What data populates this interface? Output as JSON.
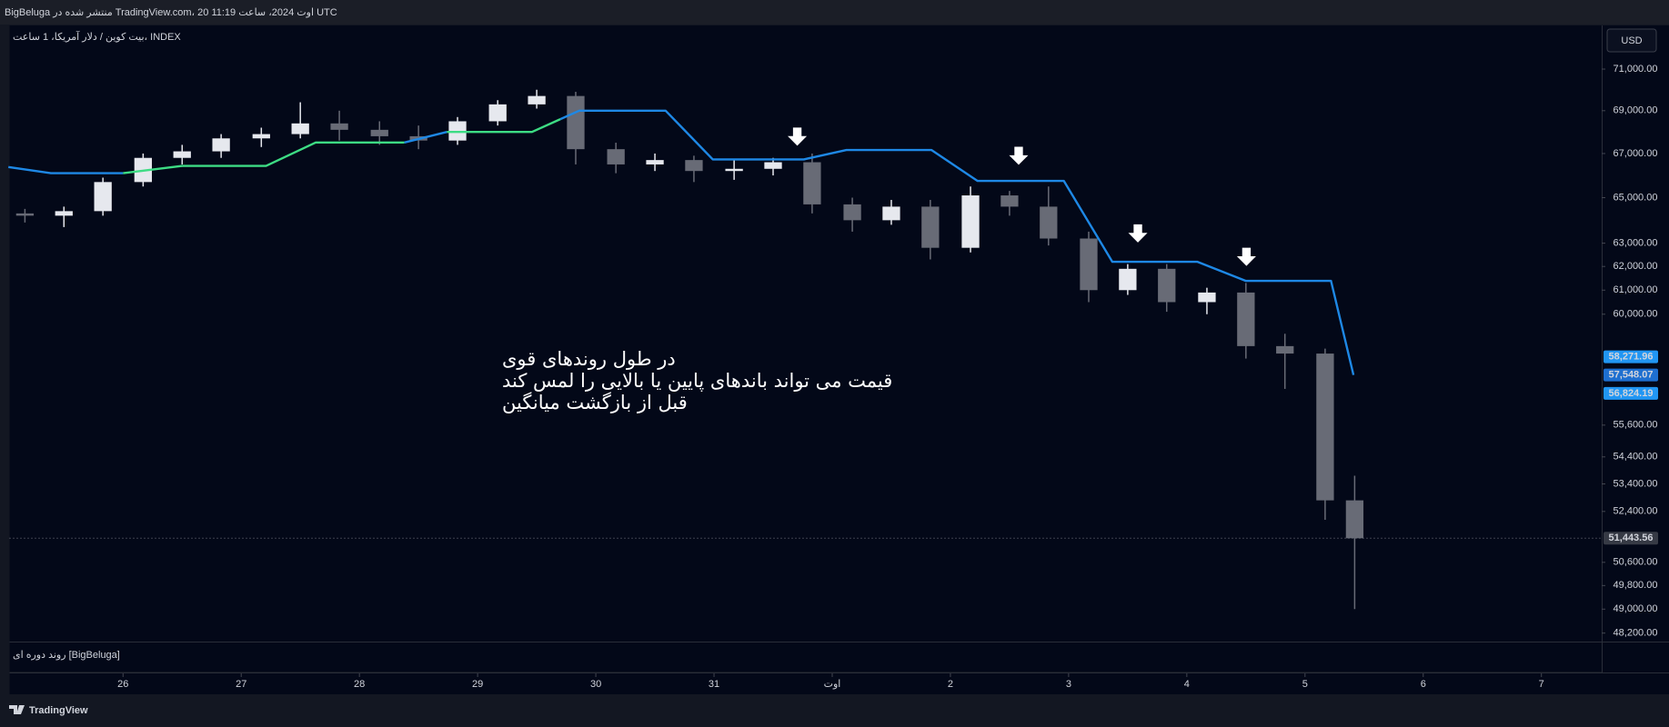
{
  "header": {
    "text": "BigBeluga منتشر شده در TradingView.com، 20 اوت 2024، ساعت 11:19 UTC"
  },
  "chart_data": {
    "type": "candlestick",
    "symbol": "بیت کوین / دلار آمریکا، 1 ساعت، INDEX",
    "currency": "USD",
    "annotation": [
      "در طول روندهای قوی",
      "قیمت می تواند باندهای پایین یا بالایی را لمس کند",
      "قبل از بازگشت میانگین"
    ],
    "indicator": "روند دوره ای [BigBeluga]",
    "x": [
      25.17,
      25.5,
      25.83,
      26.17,
      26.5,
      26.83,
      27.17,
      27.5,
      27.83,
      28.17,
      28.5,
      28.83,
      29.17,
      29.5,
      29.83,
      30.17,
      30.5,
      30.83,
      31.17,
      31.5,
      31.83,
      32.17,
      32.5,
      32.83,
      33.17,
      33.5,
      33.83,
      34.17,
      34.5,
      34.83,
      35.17,
      35.5,
      35.83,
      36.17,
      36.42
    ],
    "open": [
      64300,
      64200,
      64400,
      65700,
      66800,
      67100,
      67700,
      67900,
      68400,
      68100,
      67800,
      67600,
      68500,
      69300,
      69700,
      67200,
      66500,
      66700,
      66200,
      66300,
      66600,
      64700,
      64000,
      64600,
      62800,
      65100,
      64600,
      63200,
      61000,
      61900,
      60500,
      60900,
      58700,
      58400,
      52800
    ],
    "high": [
      64500,
      64600,
      65900,
      67000,
      67400,
      67900,
      68200,
      69400,
      69000,
      68500,
      68300,
      68700,
      69500,
      70000,
      69900,
      67500,
      67000,
      66900,
      66700,
      66800,
      67000,
      65000,
      64900,
      64900,
      65500,
      65300,
      65500,
      63500,
      62100,
      62100,
      61100,
      61300,
      59200,
      58600,
      53700
    ],
    "low": [
      63900,
      63700,
      64200,
      65500,
      66500,
      66800,
      67300,
      67700,
      67600,
      67400,
      67200,
      67400,
      68300,
      69100,
      66500,
      66100,
      66200,
      65700,
      65800,
      66000,
      64300,
      63500,
      63800,
      62300,
      62600,
      64200,
      62900,
      60500,
      60800,
      60100,
      60000,
      58200,
      57000,
      52100,
      49000
    ],
    "close": [
      64200,
      64400,
      65700,
      66800,
      67100,
      67700,
      67900,
      68400,
      68100,
      67800,
      67600,
      68500,
      69300,
      69700,
      67200,
      66500,
      66700,
      66200,
      66300,
      66600,
      64700,
      64000,
      64600,
      62800,
      65100,
      64600,
      63200,
      61000,
      61900,
      60500,
      60900,
      58700,
      58400,
      52800,
      51443.56
    ],
    "close_label": "51,443.56",
    "up_color": "#e6e8ee",
    "down_color": "#686b76",
    "series": [
      {
        "color": "#1e88e5",
        "x": [
          25.03,
          25.39,
          26.0
        ],
        "values": [
          66380,
          66100,
          66100
        ]
      },
      {
        "color": "#3ddc84",
        "x": [
          26.0,
          26.5,
          27.21,
          27.63,
          28.38
        ],
        "values": [
          66100,
          66430,
          66430,
          67510,
          67510
        ]
      },
      {
        "color": "#1e88e5",
        "x": [
          28.38,
          28.74
        ],
        "values": [
          67510,
          68000
        ]
      },
      {
        "color": "#3ddc84",
        "x": [
          28.74,
          29.46,
          29.7
        ],
        "values": [
          68000,
          68000,
          68600
        ]
      },
      {
        "color": "#1e88e5",
        "x": [
          29.7,
          29.86,
          30.59,
          30.99,
          31.76,
          32.12,
          32.84,
          33.23,
          33.96,
          34.37,
          35.09,
          35.5,
          36.22,
          36.41
        ],
        "values": [
          68600,
          69000,
          69000,
          66730,
          66730,
          67160,
          67160,
          65750,
          65750,
          62200,
          62200,
          61390,
          61390,
          57548.07
        ]
      }
    ],
    "price_labels": [
      {
        "value": 58271.96,
        "label": "58,271.96",
        "color": "#2196f3"
      },
      {
        "value": 57548.07,
        "label": "57,548.07",
        "color": "#1e6fd0"
      },
      {
        "value": 56824.19,
        "label": "56,824.19",
        "color": "#2196f3"
      }
    ],
    "log_scale": true,
    "xlim": [
      25.04,
      38.51
    ],
    "ylim": [
      47920,
      73160
    ],
    "xticks": [
      26,
      27,
      28,
      29,
      30,
      31,
      {
        "value": 32,
        "label": "اوت"
      },
      {
        "value": 33,
        "label": "2"
      },
      {
        "value": 34,
        "label": "3"
      },
      {
        "value": 35,
        "label": "4"
      },
      {
        "value": 36,
        "label": "5"
      },
      {
        "value": 37,
        "label": "6"
      },
      {
        "value": 38,
        "label": "7"
      }
    ],
    "yticks": [
      {
        "value": 71000,
        "label": "71,000.00"
      },
      {
        "value": 69000,
        "label": "69,000.00"
      },
      {
        "value": 67000,
        "label": "67,000.00"
      },
      {
        "value": 65000,
        "label": "65,000.00"
      },
      {
        "value": 63000,
        "label": "63,000.00"
      },
      {
        "value": 62000,
        "label": "62,000.00"
      },
      {
        "value": 61000,
        "label": "61,000.00"
      },
      {
        "value": 60000,
        "label": "60,000.00"
      },
      {
        "value": 55600,
        "label": "55,600.00"
      },
      {
        "value": 54400,
        "label": "54,400.00"
      },
      {
        "value": 53400,
        "label": "53,400.00"
      },
      {
        "value": 52400,
        "label": "52,400.00"
      },
      {
        "value": 50600,
        "label": "50,600.00"
      },
      {
        "value": 49800,
        "label": "49,800.00"
      },
      {
        "value": 49000,
        "label": "49,000.00"
      },
      {
        "value": 48200,
        "label": "48,200.00"
      }
    ]
  },
  "footer": {
    "brand": "TradingView"
  }
}
